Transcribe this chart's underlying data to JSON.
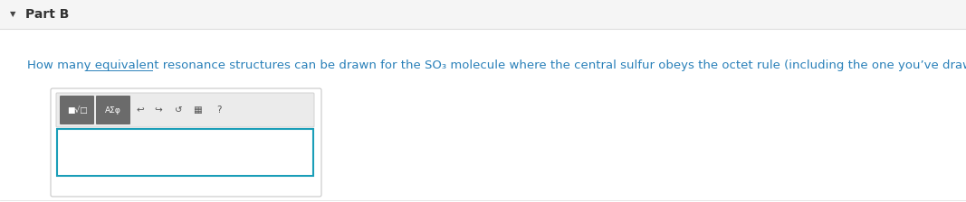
{
  "bg_top": "#f5f5f5",
  "bg_bottom": "#ffffff",
  "part_label": "Part B",
  "part_label_color": "#333333",
  "part_label_fontsize": 10,
  "triangle_color": "#444444",
  "question_color": "#2980b9",
  "question_fontsize": 9.5,
  "header_line_color": "#dddddd",
  "toolbar_bg": "#ebebeb",
  "toolbar_border": "#cccccc",
  "btn_color": "#6b6b6b",
  "input_border_color": "#1a9eb8",
  "outer_border_color": "#c8c8c8",
  "icon_color": "#555555",
  "underline_color": "#2980b9"
}
